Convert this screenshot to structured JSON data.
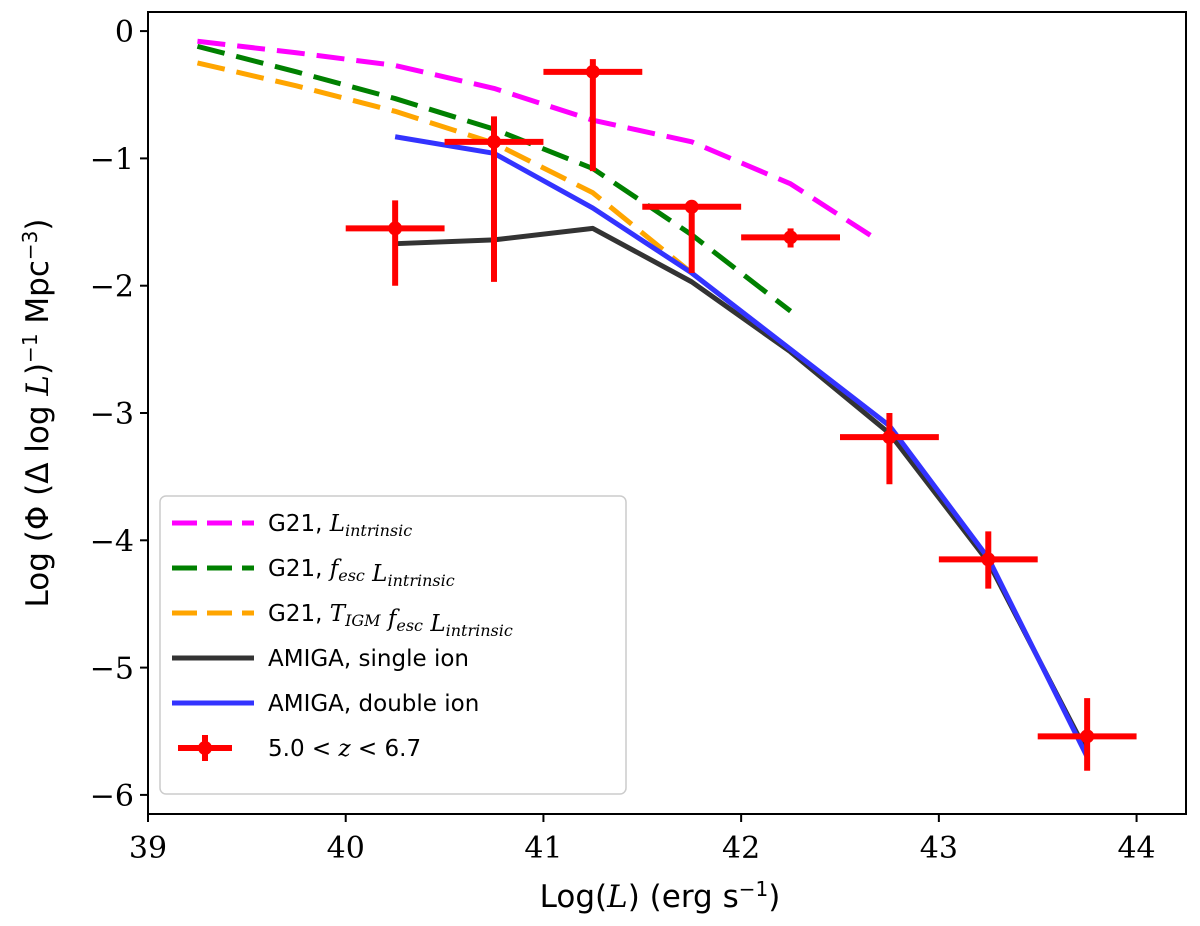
{
  "chart_data": {
    "type": "line",
    "xlabel": "Log(L) (erg s⁻¹)",
    "ylabel": "Log (Φ (Δ log L)⁻¹ Mpc⁻³)",
    "xlim": [
      39,
      44.25
    ],
    "ylim": [
      -6.15,
      0.15
    ],
    "xticks": [
      "39",
      "40",
      "41",
      "42",
      "43",
      "44"
    ],
    "yticks": [
      "0",
      "−1",
      "−2",
      "−3",
      "−4",
      "−5",
      "−6"
    ],
    "legend_position": "lower-left",
    "series": [
      {
        "name": "G21, L_intrinsic",
        "legend": [
          "G21, ",
          "L",
          "intrinsic"
        ],
        "color": "#ff00ff",
        "style": "dashed",
        "x": [
          39.25,
          39.75,
          40.25,
          40.75,
          41.25,
          41.75,
          42.25,
          42.5,
          42.7
        ],
        "y": [
          -0.08,
          -0.17,
          -0.27,
          -0.45,
          -0.7,
          -0.87,
          -1.2,
          -1.45,
          -1.65
        ]
      },
      {
        "name": "G21, f_esc L_intrinsic",
        "legend": [
          "G21, ",
          "f",
          "esc",
          " L",
          "intrinsic"
        ],
        "color": "#008000",
        "style": "dashed",
        "x": [
          39.25,
          39.75,
          40.25,
          40.75,
          41.25,
          41.75,
          42.25
        ],
        "y": [
          -0.12,
          -0.32,
          -0.53,
          -0.77,
          -1.08,
          -1.6,
          -2.2
        ]
      },
      {
        "name": "G21, T_IGM f_esc L_intrinsic",
        "legend": [
          "G21, ",
          "T",
          "IGM",
          " f",
          "esc",
          " L",
          "intrinsic"
        ],
        "color": "#ffa500",
        "style": "dashed",
        "x": [
          39.25,
          39.75,
          40.25,
          40.75,
          41.25,
          41.75
        ],
        "y": [
          -0.25,
          -0.43,
          -0.63,
          -0.88,
          -1.27,
          -1.9
        ]
      },
      {
        "name": "AMIGA, single ion",
        "color": "#333333",
        "style": "solid",
        "x": [
          40.25,
          40.75,
          41.25,
          41.75,
          42.25,
          42.75,
          43.25,
          43.75
        ],
        "y": [
          -1.67,
          -1.64,
          -1.55,
          -1.97,
          -2.52,
          -3.16,
          -4.17,
          -5.67
        ]
      },
      {
        "name": "AMIGA, double ion",
        "color": "#3333ff",
        "style": "solid",
        "x": [
          40.25,
          40.75,
          41.25,
          41.75,
          42.25,
          42.75,
          43.25,
          43.75
        ],
        "y": [
          -0.83,
          -0.96,
          -1.39,
          -1.9,
          -2.5,
          -3.1,
          -4.14,
          -5.7
        ]
      }
    ],
    "points": {
      "name": "5.0 < z < 6.7",
      "legend": [
        "5.0 < ",
        "z",
        " < 6.7"
      ],
      "color": "#ff0000",
      "x": [
        40.25,
        40.75,
        41.25,
        41.75,
        42.25,
        42.75,
        43.25,
        43.75
      ],
      "y": [
        -1.55,
        -0.87,
        -0.32,
        -1.38,
        -1.62,
        -3.19,
        -4.15,
        -5.54
      ],
      "xerr": [
        0.25,
        0.25,
        0.25,
        0.25,
        0.25,
        0.25,
        0.25,
        0.25
      ],
      "yerr_low": [
        0.45,
        1.1,
        0.78,
        0.52,
        0.08,
        0.37,
        0.23,
        0.27
      ],
      "yerr_high": [
        0.22,
        0.2,
        0.1,
        0.02,
        0.07,
        0.19,
        0.22,
        0.3
      ]
    }
  }
}
